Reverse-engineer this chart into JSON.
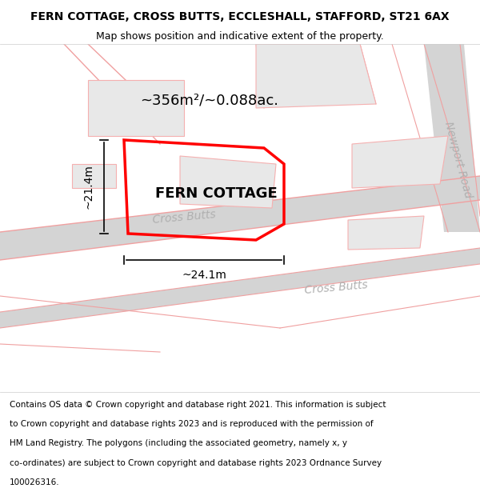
{
  "title_line1": "FERN COTTAGE, CROSS BUTTS, ECCLESHALL, STAFFORD, ST21 6AX",
  "title_line2": "Map shows position and indicative extent of the property.",
  "property_name": "FERN COTTAGE",
  "area_text": "~356m²/~0.088ac.",
  "dim_height": "~21.4m",
  "dim_width": "~24.1m",
  "road_label1": "Cross Butts",
  "road_label2": "Cross Butts",
  "road_label3": "Newport Road",
  "footer_text": "Contains OS data © Crown copyright and database right 2021. This information is subject to Crown copyright and database rights 2023 and is reproduced with the permission of HM Land Registry. The polygons (including the associated geometry, namely x, y co-ordinates) are subject to Crown copyright and database rights 2023 Ordnance Survey 100026316.",
  "map_bg": "#ffffff",
  "road_color": "#d4d4d4",
  "road_stroke": "#f0a0a0",
  "building_fill": "#e8e8e8",
  "building_stroke": "#f5b0b0",
  "property_outline_color": "#ff0000",
  "dim_color": "#000000",
  "area_color": "#000000",
  "road_text_color": "#b0b0b0",
  "footer_bg": "#ffffff",
  "title_fontsize": 10,
  "subtitle_fontsize": 9,
  "property_fontsize": 13,
  "area_fontsize": 13,
  "dim_fontsize": 10,
  "road_fontsize": 10,
  "footer_fontsize": 7.5
}
